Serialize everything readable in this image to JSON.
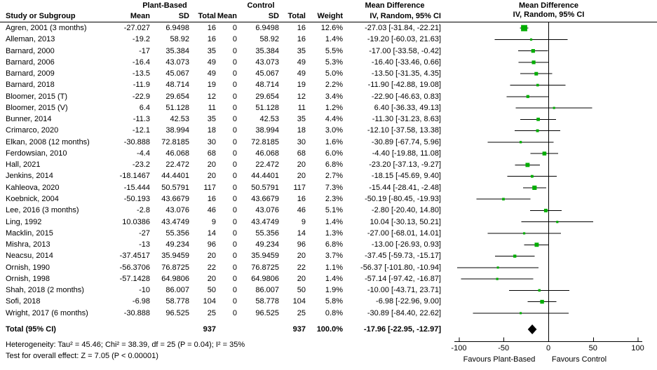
{
  "figure": {
    "header": {
      "study_col": "Study or Subgroup",
      "group1": "Plant-Based",
      "group2": "Control",
      "mean": "Mean",
      "sd": "SD",
      "total": "Total",
      "weight": "Weight",
      "md_title": "Mean Difference",
      "md_method": "IV, Random, 95% CI"
    },
    "footer": {
      "heterogeneity": "Heterogeneity: Tau² = 45.46; Chi² = 38.39, df = 25 (P = 0.04); I² = 35%",
      "overall_effect": "Test for overall effect: Z = 7.05 (P < 0.00001)"
    }
  },
  "chart_data": {
    "type": "forest",
    "effect_measure": "Mean Difference",
    "model": "IV, Random, 95% CI",
    "axis": {
      "ticks": [
        -100,
        -50,
        0,
        50,
        100
      ],
      "range": [
        -105,
        105
      ],
      "favours_left": "Favours Plant-Based",
      "favours_right": "Favours Control"
    },
    "colors": {
      "marker_green": "#00ad00",
      "line_black": "#000000",
      "diamond_black": "#000000"
    },
    "studies": [
      {
        "name": "Agren, 2001 (3 months)",
        "pb_mean": "-27.027",
        "pb_sd": "6.9498",
        "pb_total": "16",
        "c_mean": "0",
        "c_sd": "6.9498",
        "c_total": "16",
        "weight": "12.6%",
        "w": 12.6,
        "md": "-27.03 [-31.84, -22.21]",
        "est": -27.03,
        "lo": -31.84,
        "hi": -22.21
      },
      {
        "name": "Alleman, 2013",
        "pb_mean": "-19.2",
        "pb_sd": "58.92",
        "pb_total": "16",
        "c_mean": "0",
        "c_sd": "58.92",
        "c_total": "16",
        "weight": "1.4%",
        "w": 1.4,
        "md": "-19.20 [-60.03, 21.63]",
        "est": -19.2,
        "lo": -60.03,
        "hi": 21.63
      },
      {
        "name": "Barnard, 2000",
        "pb_mean": "-17",
        "pb_sd": "35.384",
        "pb_total": "35",
        "c_mean": "0",
        "c_sd": "35.384",
        "c_total": "35",
        "weight": "5.5%",
        "w": 5.5,
        "md": "-17.00 [-33.58, -0.42]",
        "est": -17.0,
        "lo": -33.58,
        "hi": -0.42
      },
      {
        "name": "Barnard, 2006",
        "pb_mean": "-16.4",
        "pb_sd": "43.073",
        "pb_total": "49",
        "c_mean": "0",
        "c_sd": "43.073",
        "c_total": "49",
        "weight": "5.3%",
        "w": 5.3,
        "md": "-16.40 [-33.46, 0.66]",
        "est": -16.4,
        "lo": -33.46,
        "hi": 0.66
      },
      {
        "name": "Barnard, 2009",
        "pb_mean": "-13.5",
        "pb_sd": "45.067",
        "pb_total": "49",
        "c_mean": "0",
        "c_sd": "45.067",
        "c_total": "49",
        "weight": "5.0%",
        "w": 5.0,
        "md": "-13.50 [-31.35, 4.35]",
        "est": -13.5,
        "lo": -31.35,
        "hi": 4.35
      },
      {
        "name": "Barnard, 2018",
        "pb_mean": "-11.9",
        "pb_sd": "48.714",
        "pb_total": "19",
        "c_mean": "0",
        "c_sd": "48.714",
        "c_total": "19",
        "weight": "2.2%",
        "w": 2.2,
        "md": "-11.90 [-42.88, 19.08]",
        "est": -11.9,
        "lo": -42.88,
        "hi": 19.08
      },
      {
        "name": "Bloomer, 2015 (T)",
        "pb_mean": "-22.9",
        "pb_sd": "29.654",
        "pb_total": "12",
        "c_mean": "0",
        "c_sd": "29.654",
        "c_total": "12",
        "weight": "3.4%",
        "w": 3.4,
        "md": "-22.90 [-46.63, 0.83]",
        "est": -22.9,
        "lo": -46.63,
        "hi": 0.83
      },
      {
        "name": "Bloomer, 2015 (V)",
        "pb_mean": "6.4",
        "pb_sd": "51.128",
        "pb_total": "11",
        "c_mean": "0",
        "c_sd": "51.128",
        "c_total": "11",
        "weight": "1.2%",
        "w": 1.2,
        "md": "6.40 [-36.33, 49.13]",
        "est": 6.4,
        "lo": -36.33,
        "hi": 49.13
      },
      {
        "name": "Bunner, 2014",
        "pb_mean": "-11.3",
        "pb_sd": "42.53",
        "pb_total": "35",
        "c_mean": "0",
        "c_sd": "42.53",
        "c_total": "35",
        "weight": "4.4%",
        "w": 4.4,
        "md": "-11.30 [-31.23, 8.63]",
        "est": -11.3,
        "lo": -31.23,
        "hi": 8.63
      },
      {
        "name": "Crimarco, 2020",
        "pb_mean": "-12.1",
        "pb_sd": "38.994",
        "pb_total": "18",
        "c_mean": "0",
        "c_sd": "38.994",
        "c_total": "18",
        "weight": "3.0%",
        "w": 3.0,
        "md": "-12.10 [-37.58, 13.38]",
        "est": -12.1,
        "lo": -37.58,
        "hi": 13.38
      },
      {
        "name": "Elkan, 2008 (12 months)",
        "pb_mean": "-30.888",
        "pb_sd": "72.8185",
        "pb_total": "30",
        "c_mean": "0",
        "c_sd": "72.8185",
        "c_total": "30",
        "weight": "1.6%",
        "w": 1.6,
        "md": "-30.89 [-67.74, 5.96]",
        "est": -30.89,
        "lo": -67.74,
        "hi": 5.96
      },
      {
        "name": "Ferdowsian, 2010",
        "pb_mean": "-4.4",
        "pb_sd": "46.068",
        "pb_total": "68",
        "c_mean": "0",
        "c_sd": "46.068",
        "c_total": "68",
        "weight": "6.0%",
        "w": 6.0,
        "md": "-4.40 [-19.88, 11.08]",
        "est": -4.4,
        "lo": -19.88,
        "hi": 11.08
      },
      {
        "name": "Hall, 2021",
        "pb_mean": "-23.2",
        "pb_sd": "22.472",
        "pb_total": "20",
        "c_mean": "0",
        "c_sd": "22.472",
        "c_total": "20",
        "weight": "6.8%",
        "w": 6.8,
        "md": "-23.20 [-37.13, -9.27]",
        "est": -23.2,
        "lo": -37.13,
        "hi": -9.27
      },
      {
        "name": "Jenkins, 2014",
        "pb_mean": "-18.1467",
        "pb_sd": "44.4401",
        "pb_total": "20",
        "c_mean": "0",
        "c_sd": "44.4401",
        "c_total": "20",
        "weight": "2.7%",
        "w": 2.7,
        "md": "-18.15 [-45.69, 9.40]",
        "est": -18.15,
        "lo": -45.69,
        "hi": 9.4
      },
      {
        "name": "Kahleova, 2020",
        "pb_mean": "-15.444",
        "pb_sd": "50.5791",
        "pb_total": "117",
        "c_mean": "0",
        "c_sd": "50.5791",
        "c_total": "117",
        "weight": "7.3%",
        "w": 7.3,
        "md": "-15.44 [-28.41, -2.48]",
        "est": -15.44,
        "lo": -28.41,
        "hi": -2.48
      },
      {
        "name": "Koebnick, 2004",
        "pb_mean": "-50.193",
        "pb_sd": "43.6679",
        "pb_total": "16",
        "c_mean": "0",
        "c_sd": "43.6679",
        "c_total": "16",
        "weight": "2.3%",
        "w": 2.3,
        "md": "-50.19 [-80.45, -19.93]",
        "est": -50.19,
        "lo": -80.45,
        "hi": -19.93
      },
      {
        "name": "Lee, 2016 (3 months)",
        "pb_mean": "-2.8",
        "pb_sd": "43.076",
        "pb_total": "46",
        "c_mean": "0",
        "c_sd": "43.076",
        "c_total": "46",
        "weight": "5.1%",
        "w": 5.1,
        "md": "-2.80 [-20.40, 14.80]",
        "est": -2.8,
        "lo": -20.4,
        "hi": 14.8
      },
      {
        "name": "Ling, 1992",
        "pb_mean": "10.0386",
        "pb_sd": "43.4749",
        "pb_total": "9",
        "c_mean": "0",
        "c_sd": "43.4749",
        "c_total": "9",
        "weight": "1.4%",
        "w": 1.4,
        "md": "10.04 [-30.13, 50.21]",
        "est": 10.04,
        "lo": -30.13,
        "hi": 50.21
      },
      {
        "name": "Macklin, 2015",
        "pb_mean": "-27",
        "pb_sd": "55.356",
        "pb_total": "14",
        "c_mean": "0",
        "c_sd": "55.356",
        "c_total": "14",
        "weight": "1.3%",
        "w": 1.3,
        "md": "-27.00 [-68.01, 14.01]",
        "est": -27.0,
        "lo": -68.01,
        "hi": 14.01
      },
      {
        "name": "Mishra, 2013",
        "pb_mean": "-13",
        "pb_sd": "49.234",
        "pb_total": "96",
        "c_mean": "0",
        "c_sd": "49.234",
        "c_total": "96",
        "weight": "6.8%",
        "w": 6.8,
        "md": "-13.00 [-26.93, 0.93]",
        "est": -13.0,
        "lo": -26.93,
        "hi": 0.93
      },
      {
        "name": "Neacsu, 2014",
        "pb_mean": "-37.4517",
        "pb_sd": "35.9459",
        "pb_total": "20",
        "c_mean": "0",
        "c_sd": "35.9459",
        "c_total": "20",
        "weight": "3.7%",
        "w": 3.7,
        "md": "-37.45 [-59.73, -15.17]",
        "est": -37.45,
        "lo": -59.73,
        "hi": -15.17
      },
      {
        "name": "Ornish, 1990",
        "pb_mean": "-56.3706",
        "pb_sd": "76.8725",
        "pb_total": "22",
        "c_mean": "0",
        "c_sd": "76.8725",
        "c_total": "22",
        "weight": "1.1%",
        "w": 1.1,
        "md": "-56.37 [-101.80, -10.94]",
        "est": -56.37,
        "lo": -101.8,
        "hi": -10.94
      },
      {
        "name": "Ornish, 1998",
        "pb_mean": "-57.1428",
        "pb_sd": "64.9806",
        "pb_total": "20",
        "c_mean": "0",
        "c_sd": "64.9806",
        "c_total": "20",
        "weight": "1.4%",
        "w": 1.4,
        "md": "-57.14 [-97.42, -16.87]",
        "est": -57.14,
        "lo": -97.42,
        "hi": -16.87
      },
      {
        "name": "Shah, 2018 (2 months)",
        "pb_mean": "-10",
        "pb_sd": "86.007",
        "pb_total": "50",
        "c_mean": "0",
        "c_sd": "86.007",
        "c_total": "50",
        "weight": "1.9%",
        "w": 1.9,
        "md": "-10.00 [-43.71, 23.71]",
        "est": -10.0,
        "lo": -43.71,
        "hi": 23.71
      },
      {
        "name": "Sofi, 2018",
        "pb_mean": "-6.98",
        "pb_sd": "58.778",
        "pb_total": "104",
        "c_mean": "0",
        "c_sd": "58.778",
        "c_total": "104",
        "weight": "5.8%",
        "w": 5.8,
        "md": "-6.98 [-22.96, 9.00]",
        "est": -6.98,
        "lo": -22.96,
        "hi": 9.0
      },
      {
        "name": "Wright, 2017 (6 months)",
        "pb_mean": "-30.888",
        "pb_sd": "96.525",
        "pb_total": "25",
        "c_mean": "0",
        "c_sd": "96.525",
        "c_total": "25",
        "weight": "0.8%",
        "w": 0.8,
        "md": "-30.89 [-84.40, 22.62]",
        "est": -30.89,
        "lo": -84.4,
        "hi": 22.62
      }
    ],
    "total": {
      "label": "Total (95% CI)",
      "pb_total": "937",
      "c_total": "937",
      "weight": "100.0%",
      "md": "-17.96 [-22.95, -12.97]",
      "est": -17.96,
      "lo": -22.95,
      "hi": -12.97
    }
  }
}
